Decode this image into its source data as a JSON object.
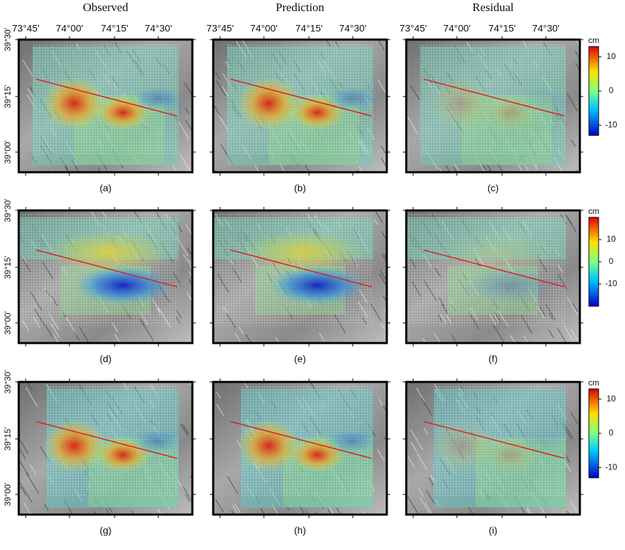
{
  "columns": [
    "Observed",
    "Prediction",
    "Residual"
  ],
  "lon_ticks": [
    "73°45'",
    "74°00'",
    "74°15'",
    "74°30'"
  ],
  "lat_ticks": [
    "39°30'",
    "39°15'",
    "39°00'"
  ],
  "rows": [
    {
      "panels": [
        "(a)",
        "(b)",
        "(c)"
      ],
      "colorbar": {
        "unit": "cm",
        "lim": [
          -13,
          13
        ],
        "ticks": [
          10,
          0,
          -10
        ]
      }
    },
    {
      "panels": [
        "(d)",
        "(e)",
        "(f)"
      ],
      "colorbar": {
        "unit": "cm",
        "lim": [
          -20,
          20
        ],
        "ticks": [
          10,
          0,
          -10
        ]
      }
    },
    {
      "panels": [
        "(g)",
        "(h)",
        "(i)"
      ],
      "colorbar": {
        "unit": "cm",
        "lim": [
          -13,
          13
        ],
        "ticks": [
          10,
          0,
          -10
        ]
      }
    }
  ]
}
